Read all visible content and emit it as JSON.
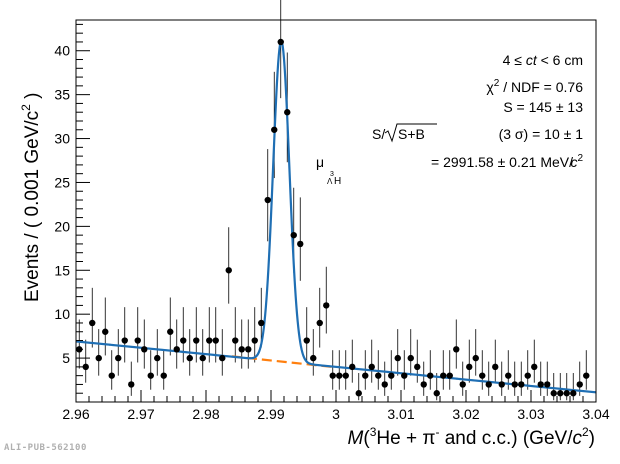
{
  "chart_data": {
    "type": "scatter",
    "title": "",
    "xlabel": "M(3He + π- and c.c.)  (GeV/c2)",
    "ylabel": "Events / ( 0.001 GeV/c2 )",
    "xlim": [
      2.96,
      3.04
    ],
    "ylim": [
      0,
      43.5
    ],
    "x_ticks": [
      2.96,
      2.97,
      2.98,
      2.99,
      3.0,
      3.01,
      3.02,
      3.03,
      3.04
    ],
    "x_tick_labels": [
      "2.96",
      "2.97",
      "2.98",
      "2.99",
      "3",
      "3.01",
      "3.02",
      "3.03",
      "3.04"
    ],
    "y_ticks": [
      5,
      10,
      15,
      20,
      25,
      30,
      35,
      40
    ],
    "y_tick_labels": [
      "5",
      "10",
      "15",
      "20",
      "25",
      "30",
      "35",
      "40"
    ],
    "series": [
      {
        "name": "Data",
        "x": [
          2.9605,
          2.9615,
          2.9625,
          2.9635,
          2.9645,
          2.9655,
          2.9665,
          2.9675,
          2.9685,
          2.9695,
          2.9705,
          2.9715,
          2.9725,
          2.9735,
          2.9745,
          2.9755,
          2.9765,
          2.9775,
          2.9785,
          2.9795,
          2.9805,
          2.9815,
          2.9825,
          2.9835,
          2.9845,
          2.9855,
          2.9865,
          2.9875,
          2.9885,
          2.9895,
          2.9905,
          2.9915,
          2.9925,
          2.9935,
          2.9945,
          2.9955,
          2.9965,
          2.9975,
          2.9985,
          2.9995,
          3.0005,
          3.0015,
          3.0025,
          3.0035,
          3.0045,
          3.0055,
          3.0065,
          3.0075,
          3.0085,
          3.0095,
          3.0105,
          3.0115,
          3.0125,
          3.0135,
          3.0145,
          3.0155,
          3.0165,
          3.0175,
          3.0185,
          3.0195,
          3.0205,
          3.0215,
          3.0225,
          3.0235,
          3.0245,
          3.0255,
          3.0265,
          3.0275,
          3.0285,
          3.0295,
          3.0305,
          3.0315,
          3.0325,
          3.0335,
          3.0345,
          3.0355,
          3.0365,
          3.0375,
          3.0385
        ],
        "y": [
          6,
          4,
          9,
          5,
          8,
          3,
          5,
          7,
          2,
          7,
          6,
          3,
          5,
          3,
          8,
          6,
          7,
          5,
          7,
          5,
          7,
          7,
          5,
          15,
          7,
          6,
          6,
          7,
          9,
          23,
          31,
          41,
          33,
          19,
          18,
          7,
          5,
          9,
          11,
          3,
          3,
          3,
          4,
          1,
          3,
          4,
          3,
          2,
          3,
          5,
          3,
          5,
          4,
          2,
          3,
          1,
          3,
          3,
          6,
          2,
          4,
          5,
          3,
          2,
          4,
          2,
          3,
          2,
          2,
          3,
          4,
          2,
          2,
          1,
          1,
          1,
          1,
          2,
          3
        ],
        "y_err_low": [
          2.2,
          1.8,
          2.8,
          2.0,
          2.7,
          1.6,
          2.0,
          2.5,
          1.3,
          2.5,
          2.2,
          1.6,
          2.0,
          1.6,
          2.7,
          2.2,
          2.5,
          2.0,
          2.5,
          2.0,
          2.5,
          2.5,
          2.0,
          3.8,
          2.5,
          2.2,
          2.2,
          2.5,
          2.8,
          4.7,
          5.5,
          6.4,
          5.7,
          4.3,
          4.2,
          2.5,
          2.0,
          2.8,
          3.2,
          1.6,
          1.6,
          1.6,
          1.8,
          0.8,
          1.6,
          1.8,
          1.6,
          1.3,
          1.6,
          2.0,
          1.6,
          2.0,
          1.8,
          1.3,
          1.6,
          0.8,
          1.6,
          1.6,
          2.2,
          1.3,
          1.8,
          2.0,
          1.6,
          1.3,
          1.8,
          1.3,
          1.6,
          1.3,
          1.3,
          1.6,
          1.8,
          1.3,
          1.3,
          0.8,
          0.8,
          0.8,
          0.8,
          1.3,
          1.6
        ],
        "y_err_high": [
          3.4,
          3.1,
          4.0,
          3.3,
          3.9,
          2.9,
          3.3,
          3.8,
          2.6,
          3.8,
          3.4,
          2.9,
          3.3,
          2.9,
          3.9,
          3.4,
          3.8,
          3.3,
          3.8,
          3.3,
          3.8,
          3.8,
          3.3,
          4.9,
          3.8,
          3.4,
          3.4,
          3.8,
          4.0,
          5.8,
          6.6,
          7.5,
          6.8,
          5.4,
          5.3,
          3.8,
          3.3,
          4.0,
          4.4,
          2.9,
          2.9,
          2.9,
          3.1,
          2.3,
          2.9,
          3.1,
          2.9,
          2.6,
          2.9,
          3.3,
          2.9,
          3.3,
          3.1,
          2.6,
          2.9,
          2.3,
          2.9,
          2.9,
          3.4,
          2.6,
          3.1,
          3.3,
          2.9,
          2.6,
          3.1,
          2.6,
          2.9,
          2.6,
          2.6,
          2.9,
          3.1,
          2.6,
          2.6,
          2.3,
          2.3,
          2.3,
          2.3,
          2.6,
          2.9
        ],
        "color": "#000000"
      },
      {
        "name": "Signal + background fit",
        "function": "bkg + gaussian peak",
        "background": {
          "x": [
            2.96,
            3.04
          ],
          "y": [
            6.9,
            1.1
          ]
        },
        "peak": {
          "mean": 2.99158,
          "sigma": 0.00125,
          "amplitude": 36.5
        },
        "color": "#1f6fb4"
      },
      {
        "name": "Background fit",
        "x": [
          2.984,
          3.0
        ],
        "y": [
          5.2,
          3.95
        ],
        "color": "#ff7f0e",
        "style": "dashed"
      }
    ],
    "annotations": {
      "ct_range": "4 ≤ ct < 6 cm",
      "chi2": "χ2 / NDF = 0.76",
      "signal": "S = 145 ± 13",
      "significance": "S/√S+B (3 σ) = 10 ± 1",
      "mu": "μ3ΛH = 2991.58 ± 0.21 MeV/c2"
    }
  },
  "labels": {
    "ct_lhs": "4 ≤ ",
    "ct_var": "ct",
    "ct_rhs": " < 6 cm",
    "chi_sym": "χ",
    "chi_exp": "2",
    "chi_rest": " / NDF = 0.76",
    "signal": "S = 145 ± 13",
    "sig_lhs": "S/",
    "sig_radicand": "S+B",
    "sig_rhs": " (3 σ) = 10 ± 1",
    "mu_sym": "μ",
    "mu_sup": "3",
    "mu_sub_lambda": "Λ",
    "mu_sub_h": "H",
    "mu_value": " = 2991.58 ± 0.21 MeV/",
    "mu_c": "c",
    "mu_c_exp": "2",
    "y_title_main": "Events / ( 0.001 GeV/c",
    "y_title_exp": "2",
    "y_title_close": " )",
    "x_title_m": "M",
    "x_title_open": "(",
    "x_title_sup3": "3",
    "x_title_he": "He + π",
    "x_title_minus": "-",
    "x_title_cc": " and c.c.)   (GeV/",
    "x_title_c": "c",
    "x_title_exp": "2",
    "x_title_close": ")",
    "figure_id": "ALI-PUB-562100"
  }
}
